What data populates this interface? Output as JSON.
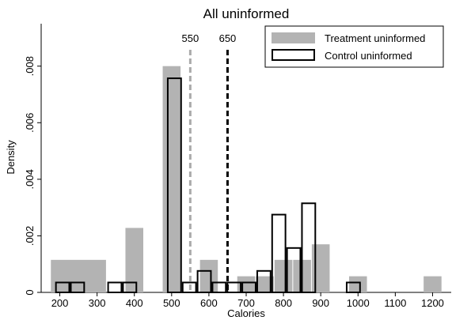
{
  "chart_data": {
    "type": "bar",
    "title": "All uninformed",
    "xlabel": "Calories",
    "ylabel": "Density",
    "xlim": [
      150,
      1250
    ],
    "ylim": [
      0,
      0.0095
    ],
    "xticks": [
      200,
      300,
      400,
      500,
      600,
      700,
      800,
      900,
      1000,
      1100,
      1200
    ],
    "yticks": [
      0,
      0.002,
      0.004,
      0.006,
      0.008
    ],
    "ytick_labels": [
      "0",
      ".002",
      ".004",
      ".006",
      ".008"
    ],
    "legend": "top-right",
    "reference_lines": [
      {
        "x": 550,
        "label": "550",
        "color": "#aaaaaa",
        "style": "dashed"
      },
      {
        "x": 650,
        "label": "650",
        "color": "#000000",
        "style": "dashed"
      }
    ],
    "series": [
      {
        "name": "Treatment uninformed",
        "style": "filled",
        "color": "#b3b3b3",
        "bars": [
          {
            "x0": 175,
            "x1": 325,
            "y": 0.00115
          },
          {
            "x0": 375,
            "x1": 425,
            "y": 0.00228
          },
          {
            "x0": 475,
            "x1": 525,
            "y": 0.008
          },
          {
            "x0": 575,
            "x1": 625,
            "y": 0.00115
          },
          {
            "x0": 675,
            "x1": 725,
            "y": 0.00057
          },
          {
            "x0": 725,
            "x1": 775,
            "y": 0.00057
          },
          {
            "x0": 775,
            "x1": 825,
            "y": 0.00115
          },
          {
            "x0": 825,
            "x1": 875,
            "y": 0.00115
          },
          {
            "x0": 875,
            "x1": 925,
            "y": 0.0017
          },
          {
            "x0": 975,
            "x1": 1025,
            "y": 0.00057
          },
          {
            "x0": 1175,
            "x1": 1225,
            "y": 0.00057
          }
        ]
      },
      {
        "name": "Control uninformed",
        "style": "outline",
        "color": "#000000",
        "bars": [
          {
            "x0": 187.5,
            "x1": 227.5,
            "y": 0.00035
          },
          {
            "x0": 227.5,
            "x1": 267.5,
            "y": 0.00035
          },
          {
            "x0": 327.5,
            "x1": 367.5,
            "y": 0.00035
          },
          {
            "x0": 367.5,
            "x1": 407.5,
            "y": 0.00035
          },
          {
            "x0": 487.5,
            "x1": 527.5,
            "y": 0.00757
          },
          {
            "x0": 527.5,
            "x1": 567.5,
            "y": 0.00035
          },
          {
            "x0": 567.5,
            "x1": 607.5,
            "y": 0.00076
          },
          {
            "x0": 607.5,
            "x1": 647.5,
            "y": 0.00035
          },
          {
            "x0": 647.5,
            "x1": 687.5,
            "y": 0.00035
          },
          {
            "x0": 687.5,
            "x1": 727.5,
            "y": 0.00035
          },
          {
            "x0": 727.5,
            "x1": 767.5,
            "y": 0.00076
          },
          {
            "x0": 767.5,
            "x1": 807.5,
            "y": 0.00275
          },
          {
            "x0": 807.5,
            "x1": 847.5,
            "y": 0.00157
          },
          {
            "x0": 847.5,
            "x1": 887.5,
            "y": 0.00315
          },
          {
            "x0": 967.5,
            "x1": 1007.5,
            "y": 0.00035
          }
        ]
      }
    ]
  }
}
